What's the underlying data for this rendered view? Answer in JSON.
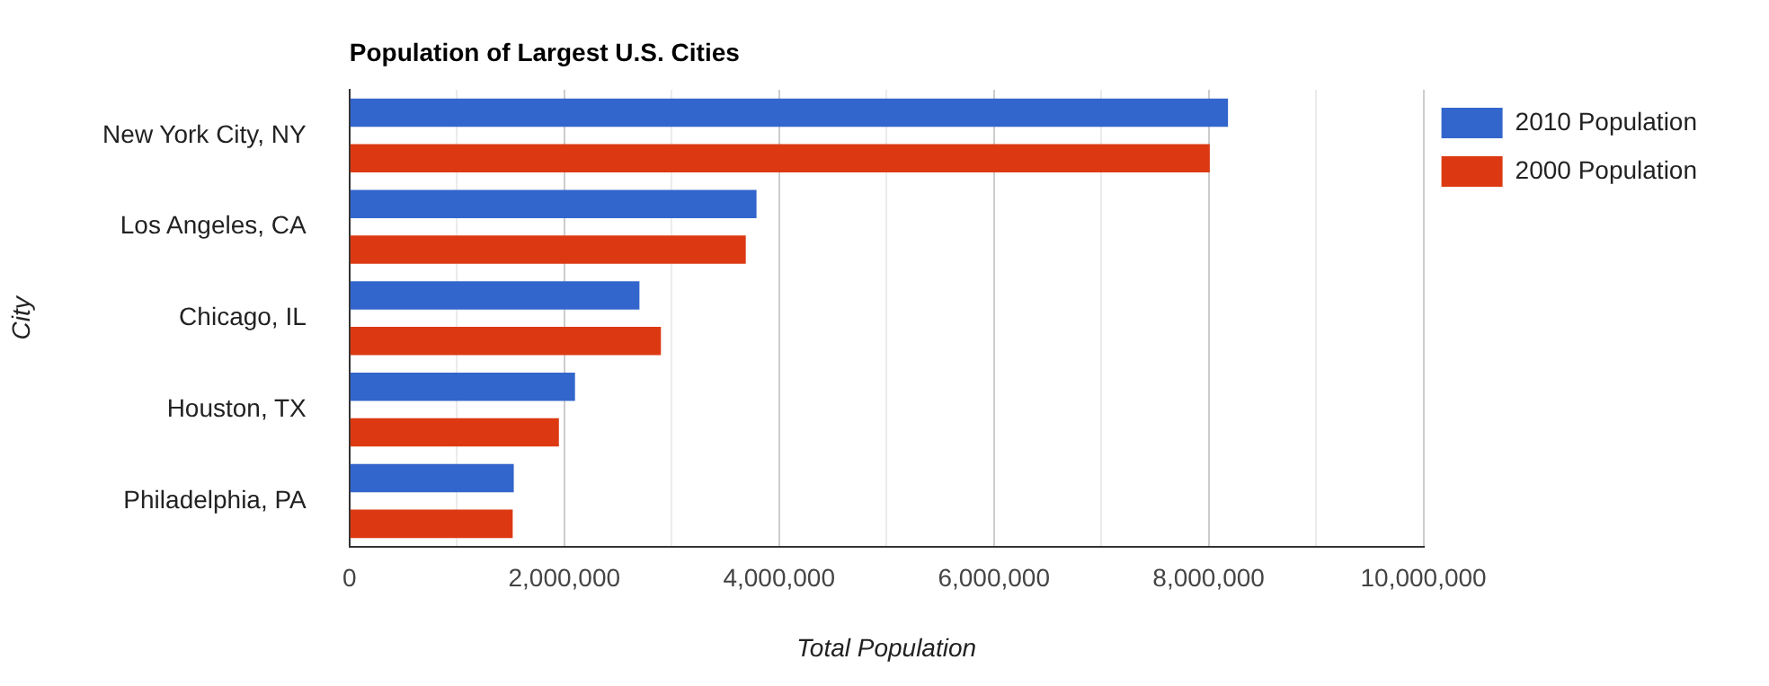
{
  "chart_data": {
    "type": "bar",
    "orientation": "horizontal",
    "title": "Population of Largest U.S. Cities",
    "xlabel": "Total Population",
    "ylabel": "City",
    "categories": [
      "New York City, NY",
      "Los Angeles, CA",
      "Chicago, IL",
      "Houston, TX",
      "Philadelphia, PA"
    ],
    "series": [
      {
        "name": "2010 Population",
        "color": "#3366cc",
        "values": [
          8180000,
          3790000,
          2700000,
          2100000,
          1530000
        ]
      },
      {
        "name": "2000 Population",
        "color": "#dc3912",
        "values": [
          8010000,
          3690000,
          2900000,
          1950000,
          1520000
        ]
      }
    ],
    "xlim": [
      0,
      10000000
    ],
    "xticks": [
      0,
      {
        "value": 1000000,
        "label": null
      },
      {
        "value": 2000000,
        "label": "2,000,000"
      },
      {
        "value": 3000000,
        "label": null
      },
      {
        "value": 4000000,
        "label": "4,000,000"
      },
      {
        "value": 5000000,
        "label": null
      },
      {
        "value": 6000000,
        "label": "6,000,000"
      },
      {
        "value": 7000000,
        "label": null
      },
      {
        "value": 8000000,
        "label": "8,000,000"
      },
      {
        "value": 9000000,
        "label": null
      },
      {
        "value": 10000000,
        "label": "10,000,000"
      }
    ],
    "grid": true,
    "legend": "top right"
  }
}
